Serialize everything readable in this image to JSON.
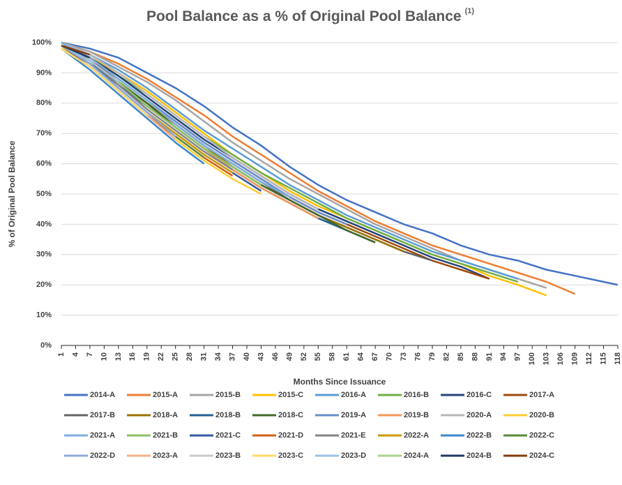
{
  "chart_data": {
    "type": "line",
    "title": "Pool Balance as a % of Original Pool Balance",
    "title_note": "(1)",
    "x_label": "Months Since Issuance",
    "y_label": "% of Original Pool Balance",
    "x": [
      1,
      7,
      13,
      19,
      25,
      31,
      37,
      43,
      49,
      55,
      61,
      67,
      73,
      79,
      85,
      91,
      97,
      103,
      109,
      115,
      118
    ],
    "xlim": [
      1,
      118
    ],
    "xticks": [
      1,
      4,
      7,
      10,
      13,
      16,
      19,
      22,
      25,
      28,
      31,
      34,
      37,
      40,
      43,
      46,
      49,
      52,
      55,
      58,
      61,
      64,
      67,
      70,
      73,
      76,
      79,
      82,
      85,
      88,
      91,
      94,
      97,
      100,
      103,
      106,
      109,
      112,
      115,
      118
    ],
    "ylim": [
      0,
      100
    ],
    "yticks": [
      {
        "value": 0,
        "label": "0%"
      },
      {
        "value": 10,
        "label": "10%"
      },
      {
        "value": 20,
        "label": "20%"
      },
      {
        "value": 30,
        "label": "30%"
      },
      {
        "value": 40,
        "label": "40%"
      },
      {
        "value": 50,
        "label": "50%"
      },
      {
        "value": 60,
        "label": "60%"
      },
      {
        "value": 70,
        "label": "70%"
      },
      {
        "value": 80,
        "label": "80%"
      },
      {
        "value": 90,
        "label": "90%"
      },
      {
        "value": 100,
        "label": "100%"
      }
    ],
    "grid": true,
    "series": [
      {
        "name": "2014-A",
        "color": "#4472c4",
        "values": [
          100,
          98,
          95,
          90,
          85,
          79,
          72,
          66,
          59,
          53,
          48,
          44,
          40,
          37,
          33,
          30,
          28,
          25,
          23,
          21,
          20
        ]
      },
      {
        "name": "2015-A",
        "color": "#ed7d31",
        "values": [
          100,
          97,
          93,
          88,
          82,
          76,
          69,
          63,
          57,
          51,
          46,
          41,
          37,
          33,
          30,
          27,
          24,
          21,
          17,
          null,
          null
        ]
      },
      {
        "name": "2015-B",
        "color": "#a5a5a5",
        "values": [
          100,
          97,
          92,
          87,
          81,
          74,
          67,
          61,
          55,
          50,
          45,
          40,
          36,
          32,
          28,
          25,
          22,
          19,
          null,
          null,
          null
        ]
      },
      {
        "name": "2015-C",
        "color": "#ffc000",
        "values": [
          98,
          95,
          90,
          84,
          77,
          70,
          63,
          57,
          51,
          46,
          42,
          38,
          34,
          30,
          27,
          23,
          20,
          16.5,
          null,
          null,
          null
        ]
      },
      {
        "name": "2016-A",
        "color": "#5b9bd5",
        "values": [
          100,
          96,
          91,
          85,
          78,
          71,
          65,
          59,
          53,
          48,
          43,
          39,
          35,
          31,
          28,
          25,
          22,
          null,
          null,
          null,
          null
        ]
      },
      {
        "name": "2016-B",
        "color": "#70ad47",
        "values": [
          99,
          95,
          89,
          83,
          76,
          69,
          63,
          57,
          52,
          47,
          42,
          38,
          34,
          30,
          27,
          24,
          21,
          null,
          null,
          null,
          null
        ]
      },
      {
        "name": "2016-C",
        "color": "#264478",
        "values": [
          100,
          95,
          89,
          82,
          75,
          68,
          62,
          56,
          50,
          45,
          41,
          37,
          33,
          29,
          26,
          22,
          null,
          null,
          null,
          null,
          null
        ]
      },
      {
        "name": "2017-A",
        "color": "#9e480e",
        "values": [
          99,
          94,
          88,
          81,
          74,
          67,
          61,
          55,
          49,
          44,
          40,
          36,
          32,
          28,
          25,
          22,
          null,
          null,
          null,
          null,
          null
        ]
      },
      {
        "name": "2017-B",
        "color": "#636363",
        "values": [
          98,
          93,
          87,
          80,
          73,
          66,
          60,
          54,
          48,
          43,
          39,
          35,
          31,
          28,
          null,
          null,
          null,
          null,
          null,
          null,
          null
        ]
      },
      {
        "name": "2018-A",
        "color": "#997300",
        "values": [
          99,
          94,
          87,
          80,
          73,
          66,
          59,
          53,
          48,
          43,
          39,
          35,
          31,
          null,
          null,
          null,
          null,
          null,
          null,
          null,
          null
        ]
      },
      {
        "name": "2018-B",
        "color": "#255e91",
        "values": [
          99,
          93,
          86,
          79,
          72,
          65,
          58,
          52,
          47,
          42,
          38,
          34,
          null,
          null,
          null,
          null,
          null,
          null,
          null,
          null,
          null
        ]
      },
      {
        "name": "2018-C",
        "color": "#43682b",
        "values": [
          100,
          94,
          87,
          80,
          72,
          65,
          59,
          53,
          48,
          43,
          38,
          34,
          null,
          null,
          null,
          null,
          null,
          null,
          null,
          null,
          null
        ]
      },
      {
        "name": "2019-A",
        "color": "#698ed0",
        "values": [
          100,
          95,
          88,
          81,
          74,
          67,
          61,
          55,
          49,
          44,
          40,
          null,
          null,
          null,
          null,
          null,
          null,
          null,
          null,
          null,
          null
        ]
      },
      {
        "name": "2019-B",
        "color": "#f1975a",
        "values": [
          99,
          94,
          87,
          79,
          72,
          65,
          58,
          52,
          47,
          42,
          null,
          null,
          null,
          null,
          null,
          null,
          null,
          null,
          null,
          null,
          null
        ]
      },
      {
        "name": "2020-A",
        "color": "#b7b7b7",
        "values": [
          100,
          96,
          90,
          83,
          76,
          69,
          62,
          56,
          50,
          45,
          null,
          null,
          null,
          null,
          null,
          null,
          null,
          null,
          null,
          null,
          null
        ]
      },
      {
        "name": "2020-B",
        "color": "#ffcd33",
        "values": [
          98,
          92,
          84,
          76,
          68,
          61,
          55,
          50,
          null,
          null,
          null,
          null,
          null,
          null,
          null,
          null,
          null,
          null,
          null,
          null,
          null
        ]
      },
      {
        "name": "2021-A",
        "color": "#7cafdd",
        "values": [
          100,
          95,
          88,
          81,
          73,
          66,
          60,
          54,
          49,
          null,
          null,
          null,
          null,
          null,
          null,
          null,
          null,
          null,
          null,
          null,
          null
        ]
      },
      {
        "name": "2021-B",
        "color": "#8cc168",
        "values": [
          99,
          94,
          87,
          79,
          72,
          65,
          59,
          53,
          null,
          null,
          null,
          null,
          null,
          null,
          null,
          null,
          null,
          null,
          null,
          null,
          null
        ]
      },
      {
        "name": "2021-C",
        "color": "#335aa1",
        "values": [
          99,
          93,
          85,
          77,
          70,
          63,
          57,
          51,
          null,
          null,
          null,
          null,
          null,
          null,
          null,
          null,
          null,
          null,
          null,
          null,
          null
        ]
      },
      {
        "name": "2021-D",
        "color": "#d26012",
        "values": [
          98,
          92,
          84,
          76,
          69,
          62,
          56,
          null,
          null,
          null,
          null,
          null,
          null,
          null,
          null,
          null,
          null,
          null,
          null,
          null,
          null
        ]
      },
      {
        "name": "2021-E",
        "color": "#848484",
        "values": [
          99,
          94,
          86,
          78,
          71,
          64,
          58,
          null,
          null,
          null,
          null,
          null,
          null,
          null,
          null,
          null,
          null,
          null,
          null,
          null,
          null
        ]
      },
      {
        "name": "2022-A",
        "color": "#cc9a00",
        "values": [
          99,
          93,
          85,
          77,
          70,
          63,
          57,
          null,
          null,
          null,
          null,
          null,
          null,
          null,
          null,
          null,
          null,
          null,
          null,
          null,
          null
        ]
      },
      {
        "name": "2022-B",
        "color": "#3a87cc",
        "values": [
          98,
          91,
          83,
          75,
          67,
          60,
          null,
          null,
          null,
          null,
          null,
          null,
          null,
          null,
          null,
          null,
          null,
          null,
          null,
          null,
          null
        ]
      },
      {
        "name": "2022-C",
        "color": "#5a8a39",
        "values": [
          99,
          93,
          85,
          77,
          69,
          62,
          null,
          null,
          null,
          null,
          null,
          null,
          null,
          null,
          null,
          null,
          null,
          null,
          null,
          null,
          null
        ]
      },
      {
        "name": "2022-D",
        "color": "#8faadc",
        "values": [
          99,
          93,
          85,
          77,
          69,
          null,
          null,
          null,
          null,
          null,
          null,
          null,
          null,
          null,
          null,
          null,
          null,
          null,
          null,
          null,
          null
        ]
      },
      {
        "name": "2023-A",
        "color": "#f4b183",
        "values": [
          98,
          92,
          84,
          76,
          68,
          null,
          null,
          null,
          null,
          null,
          null,
          null,
          null,
          null,
          null,
          null,
          null,
          null,
          null,
          null,
          null
        ]
      },
      {
        "name": "2023-B",
        "color": "#c9c9c9",
        "values": [
          98,
          92,
          84,
          76,
          null,
          null,
          null,
          null,
          null,
          null,
          null,
          null,
          null,
          null,
          null,
          null,
          null,
          null,
          null,
          null,
          null
        ]
      },
      {
        "name": "2023-C",
        "color": "#ffd966",
        "values": [
          98,
          92,
          84,
          76,
          null,
          null,
          null,
          null,
          null,
          null,
          null,
          null,
          null,
          null,
          null,
          null,
          null,
          null,
          null,
          null,
          null
        ]
      },
      {
        "name": "2023-D",
        "color": "#9dc3e6",
        "values": [
          99,
          94,
          87,
          null,
          null,
          null,
          null,
          null,
          null,
          null,
          null,
          null,
          null,
          null,
          null,
          null,
          null,
          null,
          null,
          null,
          null
        ]
      },
      {
        "name": "2024-A",
        "color": "#a9d18e",
        "values": [
          99,
          95,
          null,
          null,
          null,
          null,
          null,
          null,
          null,
          null,
          null,
          null,
          null,
          null,
          null,
          null,
          null,
          null,
          null,
          null,
          null
        ]
      },
      {
        "name": "2024-B",
        "color": "#203864",
        "values": [
          99,
          95,
          null,
          null,
          null,
          null,
          null,
          null,
          null,
          null,
          null,
          null,
          null,
          null,
          null,
          null,
          null,
          null,
          null,
          null,
          null
        ]
      },
      {
        "name": "2024-C",
        "color": "#843c0c",
        "values": [
          99,
          96,
          null,
          null,
          null,
          null,
          null,
          null,
          null,
          null,
          null,
          null,
          null,
          null,
          null,
          null,
          null,
          null,
          null,
          null,
          null
        ]
      }
    ]
  }
}
